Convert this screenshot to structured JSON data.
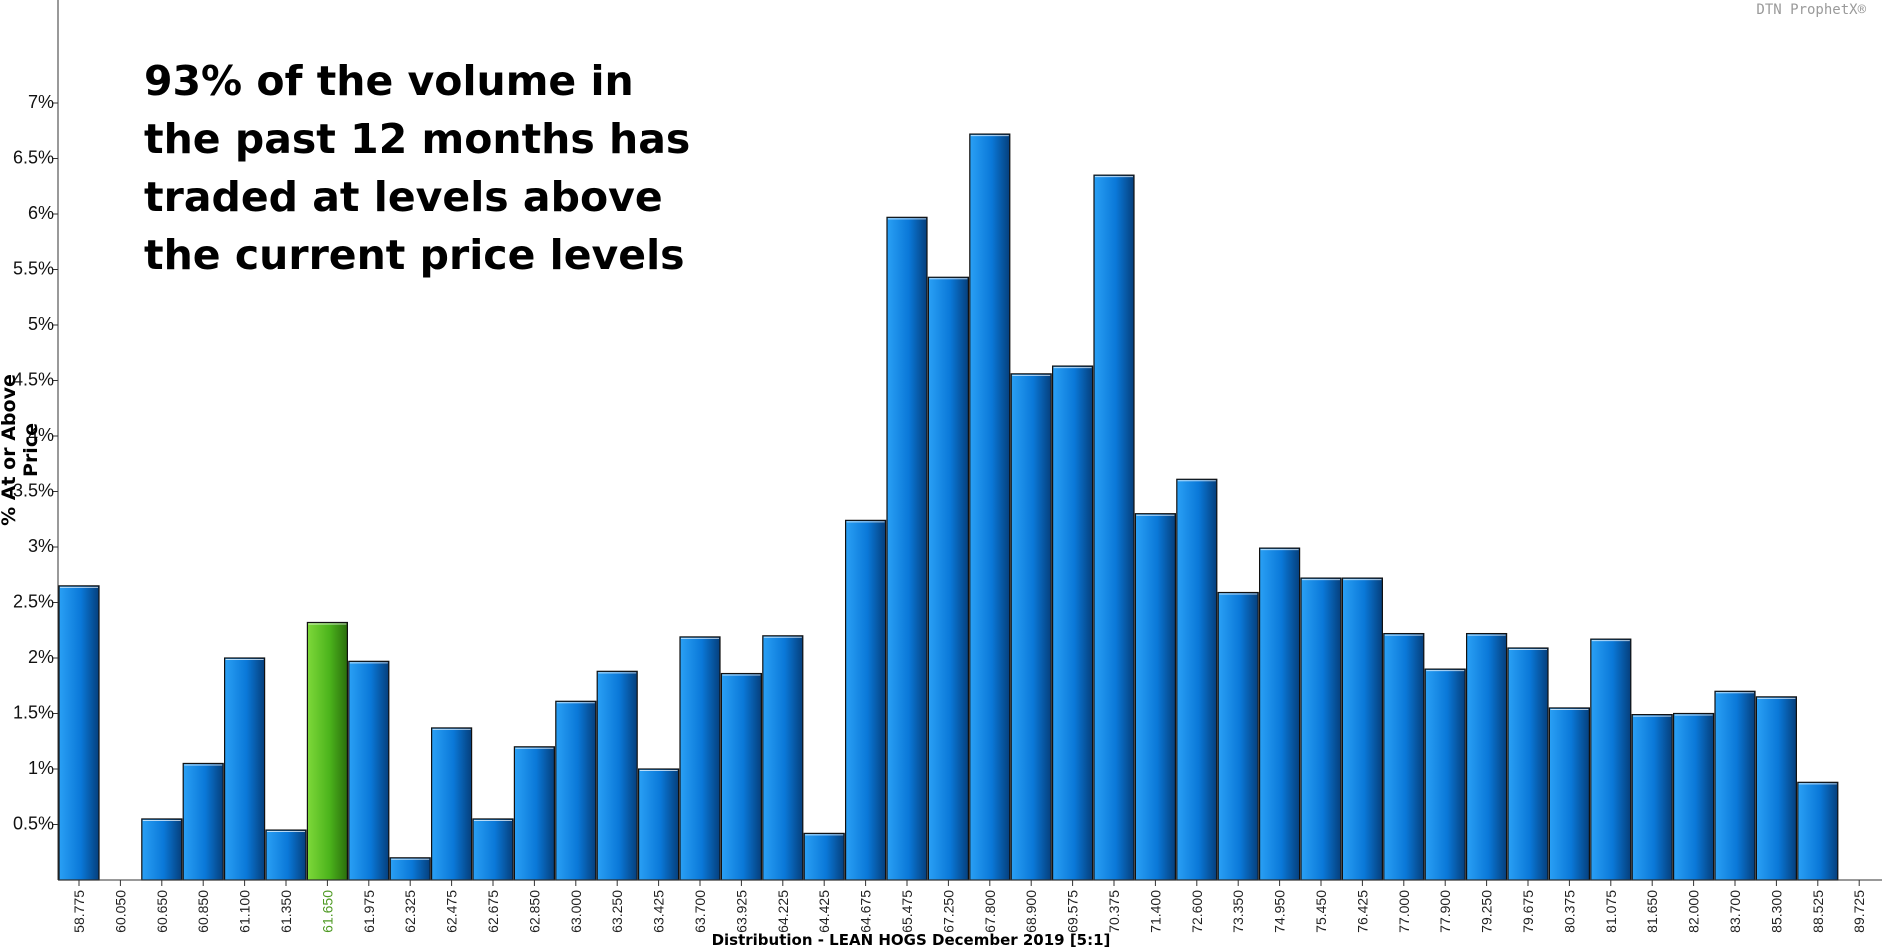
{
  "watermark": "DTN ProphetX®",
  "annotation": "93% of the volume in\nthe past 12 months has\ntraded at levels above\nthe current price levels",
  "chart_data": {
    "type": "bar",
    "title": "",
    "xlabel": "Distribution - LEAN HOGS December 2019  [5:1]",
    "ylabel": "% At or Above Price",
    "ylim": [
      0,
      7.5
    ],
    "y_ticks": [
      "0.5%",
      "1%",
      "1.5%",
      "2%",
      "2.5%",
      "3%",
      "3.5%",
      "4%",
      "4.5%",
      "5%",
      "5.5%",
      "6%",
      "6.5%",
      "7%"
    ],
    "highlight_category": "61.650",
    "colors": {
      "bar": "#0a78d8",
      "highlight": "#4cb41c",
      "highlight_label": "#4f9a24"
    },
    "categories": [
      "58.775",
      "60.050",
      "60.650",
      "60.850",
      "61.100",
      "61.350",
      "61.650",
      "61.975",
      "62.325",
      "62.475",
      "62.675",
      "62.850",
      "63.000",
      "63.250",
      "63.425",
      "63.700",
      "63.925",
      "64.225",
      "64.425",
      "64.675",
      "65.475",
      "67.250",
      "67.800",
      "68.900",
      "69.575",
      "70.375",
      "71.400",
      "72.600",
      "73.350",
      "74.950",
      "75.450",
      "76.425",
      "77.000",
      "77.900",
      "79.250",
      "79.675",
      "80.375",
      "81.075",
      "81.650",
      "82.000",
      "83.700",
      "85.300",
      "88.525",
      "89.725"
    ],
    "values": [
      2.65,
      0,
      0.55,
      1.05,
      2.0,
      0.45,
      2.32,
      1.97,
      0.2,
      1.37,
      0.55,
      1.2,
      1.61,
      1.88,
      1.0,
      2.19,
      1.86,
      2.2,
      0.42,
      3.24,
      5.97,
      5.43,
      6.72,
      4.56,
      4.63,
      6.35,
      3.3,
      3.61,
      2.59,
      2.99,
      2.72,
      2.72,
      2.22,
      1.9,
      2.22,
      2.09,
      1.55,
      2.17,
      1.49,
      1.5,
      1.7,
      1.65,
      0.88,
      0
    ]
  }
}
